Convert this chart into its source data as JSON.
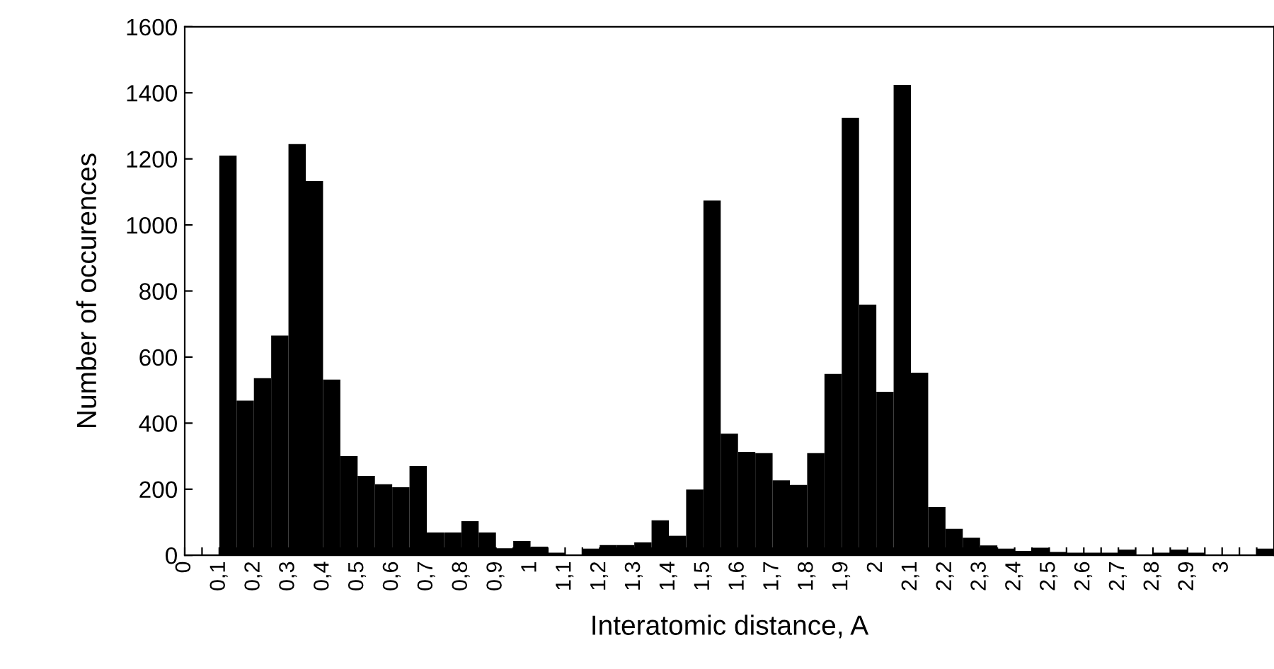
{
  "chart_data": {
    "type": "histogram",
    "xlabel": "Interatomic distance, A",
    "ylabel": "Number of occurences",
    "bins": [
      0.1,
      0.15,
      0.2,
      0.25,
      0.3,
      0.35,
      0.4,
      0.45,
      0.5,
      0.55,
      0.6,
      0.65,
      0.7,
      0.75,
      0.8,
      0.85,
      0.9,
      0.95,
      1.0,
      1.05,
      1.1,
      1.15,
      1.2,
      1.25,
      1.3,
      1.35,
      1.4,
      1.45,
      1.5,
      1.55,
      1.6,
      1.65,
      1.7,
      1.75,
      1.8,
      1.85,
      1.9,
      1.95,
      2.0,
      2.05,
      2.1,
      2.15,
      2.2,
      2.25,
      2.3,
      2.35,
      2.4,
      2.45,
      2.5,
      2.55,
      2.6,
      2.65,
      2.7,
      2.75,
      2.8,
      2.85,
      2.9,
      2.95,
      3.0,
      3.05,
      3.1,
      3.15
    ],
    "values": [
      1210,
      468,
      536,
      665,
      1245,
      1133,
      532,
      300,
      240,
      215,
      206,
      270,
      69,
      69,
      103,
      69,
      21,
      43,
      26,
      8,
      0,
      20,
      31,
      31,
      39,
      106,
      59,
      199,
      1074,
      368,
      313,
      309,
      227,
      213,
      309,
      549,
      1324,
      759,
      495,
      1424,
      553,
      146,
      80,
      53,
      30,
      20,
      13,
      23,
      10,
      8,
      8,
      8,
      17,
      0,
      8,
      17,
      8,
      0,
      0,
      0,
      20
    ],
    "color": "#000000",
    "xlim": [
      0,
      3.15
    ],
    "xticks": [
      {
        "value": 0,
        "label": "0"
      },
      {
        "value": 0.05,
        "label": null
      },
      {
        "value": 0.1,
        "label": "0,1"
      },
      {
        "value": 0.15,
        "label": null
      },
      {
        "value": 0.2,
        "label": "0,2"
      },
      {
        "value": 0.25,
        "label": null
      },
      {
        "value": 0.3,
        "label": "0,3"
      },
      {
        "value": 0.35,
        "label": null
      },
      {
        "value": 0.4,
        "label": "0,4"
      },
      {
        "value": 0.45,
        "label": null
      },
      {
        "value": 0.5,
        "label": "0,5"
      },
      {
        "value": 0.55,
        "label": null
      },
      {
        "value": 0.6,
        "label": "0,6"
      },
      {
        "value": 0.65,
        "label": null
      },
      {
        "value": 0.7,
        "label": "0,7"
      },
      {
        "value": 0.75,
        "label": null
      },
      {
        "value": 0.8,
        "label": "0,8"
      },
      {
        "value": 0.85,
        "label": null
      },
      {
        "value": 0.9,
        "label": "0,9"
      },
      {
        "value": 0.95,
        "label": null
      },
      {
        "value": 1,
        "label": "1"
      },
      {
        "value": 1.05,
        "label": null
      },
      {
        "value": 1.1,
        "label": "1,1"
      },
      {
        "value": 1.15,
        "label": null
      },
      {
        "value": 1.2,
        "label": "1,2"
      },
      {
        "value": 1.25,
        "label": null
      },
      {
        "value": 1.3,
        "label": "1,3"
      },
      {
        "value": 1.35,
        "label": null
      },
      {
        "value": 1.4,
        "label": "1,4"
      },
      {
        "value": 1.45,
        "label": null
      },
      {
        "value": 1.5,
        "label": "1,5"
      },
      {
        "value": 1.55,
        "label": null
      },
      {
        "value": 1.6,
        "label": "1,6"
      },
      {
        "value": 1.65,
        "label": null
      },
      {
        "value": 1.7,
        "label": "1,7"
      },
      {
        "value": 1.75,
        "label": null
      },
      {
        "value": 1.8,
        "label": "1,8"
      },
      {
        "value": 1.85,
        "label": null
      },
      {
        "value": 1.9,
        "label": "1,9"
      },
      {
        "value": 1.95,
        "label": null
      },
      {
        "value": 2,
        "label": "2"
      },
      {
        "value": 2.05,
        "label": null
      },
      {
        "value": 2.1,
        "label": "2,1"
      },
      {
        "value": 2.15,
        "label": null
      },
      {
        "value": 2.2,
        "label": "2,2"
      },
      {
        "value": 2.25,
        "label": null
      },
      {
        "value": 2.3,
        "label": "2,3"
      },
      {
        "value": 2.35,
        "label": null
      },
      {
        "value": 2.4,
        "label": "2,4"
      },
      {
        "value": 2.45,
        "label": null
      },
      {
        "value": 2.5,
        "label": "2,5"
      },
      {
        "value": 2.55,
        "label": null
      },
      {
        "value": 2.6,
        "label": "2,6"
      },
      {
        "value": 2.65,
        "label": null
      },
      {
        "value": 2.7,
        "label": "2,7"
      },
      {
        "value": 2.75,
        "label": null
      },
      {
        "value": 2.8,
        "label": "2,8"
      },
      {
        "value": 2.85,
        "label": null
      },
      {
        "value": 2.9,
        "label": "2,9"
      },
      {
        "value": 2.95,
        "label": null
      },
      {
        "value": 3,
        "label": "3"
      },
      {
        "value": 3.05,
        "label": null
      },
      {
        "value": 3.1,
        "label": null
      }
    ],
    "ylim": [
      0,
      1600
    ],
    "yticks": [
      0,
      200,
      400,
      600,
      800,
      1000,
      1200,
      1400,
      1600
    ],
    "grid": false
  }
}
